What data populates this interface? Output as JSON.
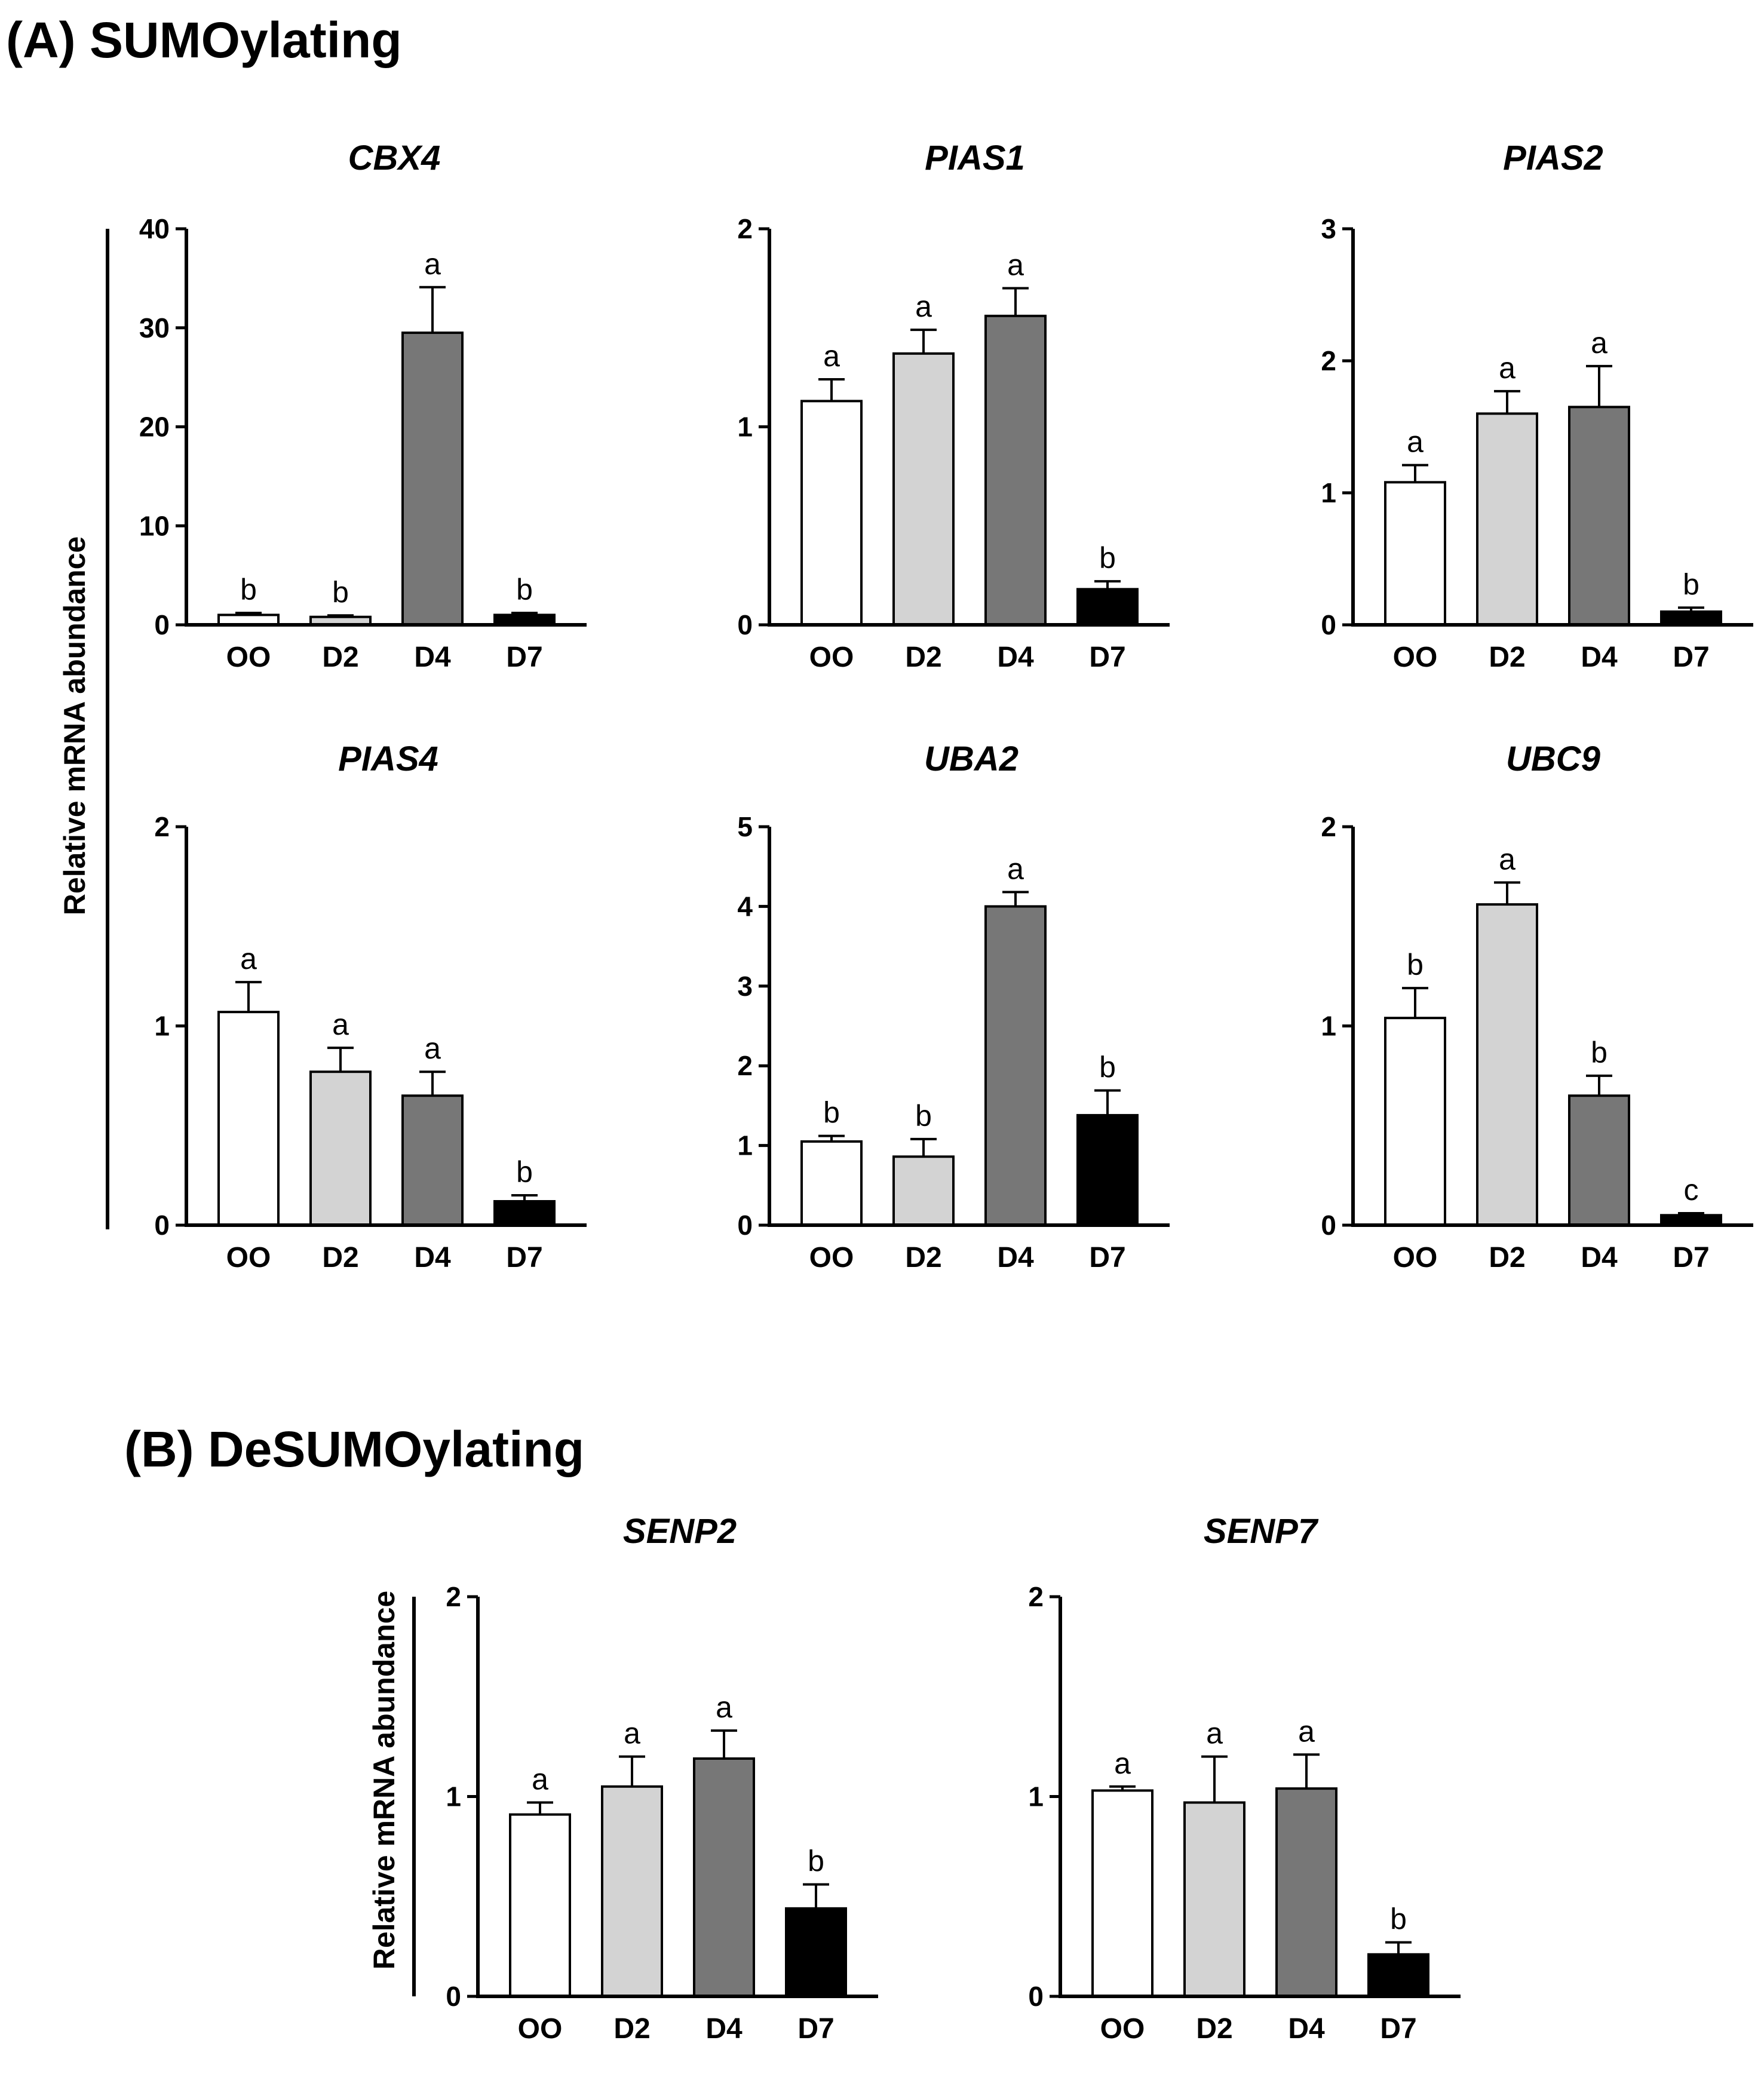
{
  "sections": [
    {
      "id": "A",
      "title": "(A) SUMOylating"
    },
    {
      "id": "B",
      "title": "(B) DeSUMOylating"
    }
  ],
  "ylabel": "Relative mRNA abundance",
  "legend_colors": {
    "OO": "#ffffff",
    "D2": "#d3d3d3",
    "D4": "#777777",
    "D7": "#000000"
  },
  "chart_data": [
    {
      "type": "bar",
      "title": "CBX4",
      "categories": [
        "OO",
        "D2",
        "D4",
        "D7"
      ],
      "values": [
        1.0,
        0.8,
        29.5,
        1.0
      ],
      "errors": [
        0.2,
        0.15,
        4.6,
        0.2
      ],
      "significance": [
        "b",
        "b",
        "a",
        "b"
      ],
      "ylim": [
        0,
        40
      ],
      "yticks": [
        0,
        10,
        20,
        30,
        40
      ],
      "ylabel": "Relative mRNA abundance"
    },
    {
      "type": "bar",
      "title": "PIAS1",
      "categories": [
        "OO",
        "D2",
        "D4",
        "D7"
      ],
      "values": [
        1.13,
        1.37,
        1.56,
        0.18
      ],
      "errors": [
        0.11,
        0.12,
        0.14,
        0.04
      ],
      "significance": [
        "a",
        "a",
        "a",
        "b"
      ],
      "ylim": [
        0,
        2
      ],
      "yticks": [
        0,
        1,
        2
      ],
      "ylabel": ""
    },
    {
      "type": "bar",
      "title": "PIAS2",
      "categories": [
        "OO",
        "D2",
        "D4",
        "D7"
      ],
      "values": [
        1.08,
        1.6,
        1.65,
        0.1
      ],
      "errors": [
        0.13,
        0.17,
        0.31,
        0.03
      ],
      "significance": [
        "a",
        "a",
        "a",
        "b"
      ],
      "ylim": [
        0,
        3
      ],
      "yticks": [
        0,
        1,
        2,
        3
      ],
      "ylabel": ""
    },
    {
      "type": "bar",
      "title": "PIAS4",
      "categories": [
        "OO",
        "D2",
        "D4",
        "D7"
      ],
      "values": [
        1.07,
        0.77,
        0.65,
        0.12
      ],
      "errors": [
        0.15,
        0.12,
        0.12,
        0.03
      ],
      "significance": [
        "a",
        "a",
        "a",
        "b"
      ],
      "ylim": [
        0,
        2
      ],
      "yticks": [
        0,
        1,
        2
      ],
      "ylabel": "Relative mRNA abundance"
    },
    {
      "type": "bar",
      "title": "UBA2",
      "categories": [
        "OO",
        "D2",
        "D4",
        "D7"
      ],
      "values": [
        1.05,
        0.86,
        4.0,
        1.38
      ],
      "errors": [
        0.07,
        0.22,
        0.18,
        0.31
      ],
      "significance": [
        "b",
        "b",
        "a",
        "b"
      ],
      "ylim": [
        0,
        5
      ],
      "yticks": [
        0,
        1,
        2,
        3,
        4,
        5
      ],
      "ylabel": ""
    },
    {
      "type": "bar",
      "title": "UBC9",
      "categories": [
        "OO",
        "D2",
        "D4",
        "D7"
      ],
      "values": [
        1.04,
        1.61,
        0.65,
        0.05
      ],
      "errors": [
        0.15,
        0.11,
        0.1,
        0.01
      ],
      "significance": [
        "b",
        "a",
        "b",
        "c"
      ],
      "ylim": [
        0,
        2
      ],
      "yticks": [
        0,
        1,
        2
      ],
      "ylabel": ""
    },
    {
      "type": "bar",
      "title": "SENP2",
      "categories": [
        "OO",
        "D2",
        "D4",
        "D7"
      ],
      "values": [
        0.91,
        1.05,
        1.19,
        0.44
      ],
      "errors": [
        0.06,
        0.15,
        0.14,
        0.12
      ],
      "significance": [
        "a",
        "a",
        "a",
        "b"
      ],
      "ylim": [
        0,
        2
      ],
      "yticks": [
        0,
        1,
        2
      ],
      "ylabel": "Relative mRNA abundance"
    },
    {
      "type": "bar",
      "title": "SENP7",
      "categories": [
        "OO",
        "D2",
        "D4",
        "D7"
      ],
      "values": [
        1.03,
        0.97,
        1.04,
        0.21
      ],
      "errors": [
        0.02,
        0.23,
        0.17,
        0.06
      ],
      "significance": [
        "a",
        "a",
        "a",
        "b"
      ],
      "ylim": [
        0,
        2
      ],
      "yticks": [
        0,
        1,
        2
      ],
      "ylabel": ""
    }
  ]
}
